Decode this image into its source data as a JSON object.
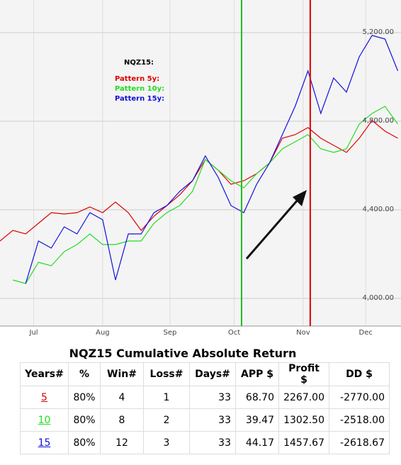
{
  "chart_data": {
    "type": "line",
    "legend_title": "NQZ15:",
    "x": [
      0,
      4,
      8,
      12,
      16,
      20,
      24,
      28,
      32,
      36,
      40,
      44,
      48,
      52,
      56,
      60,
      64,
      68,
      72,
      76,
      80,
      84,
      88,
      92,
      96,
      100,
      104,
      108,
      112,
      116,
      120,
      124
    ],
    "xlim": [
      0,
      125
    ],
    "xticks": [
      {
        "value": 10.5,
        "label": "Jul"
      },
      {
        "value": 32,
        "label": "Aug"
      },
      {
        "value": 53,
        "label": "Sep"
      },
      {
        "value": 73,
        "label": "Oct"
      },
      {
        "value": 94.5,
        "label": "Nov"
      },
      {
        "value": 114,
        "label": "Dec"
      }
    ],
    "ylim": [
      3875,
      5347
    ],
    "yticks": [
      {
        "value": 4000,
        "label": "4,000.00"
      },
      {
        "value": 4400,
        "label": "4,400.00"
      },
      {
        "value": 4800,
        "label": "4,800.00"
      },
      {
        "value": 5200,
        "label": "5,200.00"
      }
    ],
    "grid": true,
    "series": [
      {
        "name": "Pattern 5y:",
        "color": "#e00000",
        "values": [
          4259,
          4307,
          4291,
          4339,
          4387,
          4381,
          4387,
          4413,
          4387,
          4435,
          4387,
          4307,
          4371,
          4419,
          4467,
          4531,
          4627,
          4579,
          4515,
          4531,
          4563,
          4611,
          4723,
          4739,
          4771,
          4723,
          4691,
          4659,
          4723,
          4803,
          4755,
          4723
        ]
      },
      {
        "name": "Pattern 10y:",
        "color": "#22dd22",
        "values": [
          null,
          4083,
          4067,
          4163,
          4147,
          4211,
          4243,
          4291,
          4243,
          4243,
          4259,
          4259,
          4339,
          4387,
          4419,
          4483,
          4627,
          4579,
          4531,
          4499,
          4563,
          4611,
          4675,
          4707,
          4739,
          4675,
          4659,
          4675,
          4787,
          4835,
          4867,
          4787
        ]
      },
      {
        "name": "Pattern 15y:",
        "color": "#1010dd",
        "values": [
          null,
          null,
          4067,
          4259,
          4227,
          4323,
          4291,
          4387,
          4355,
          4083,
          4291,
          4291,
          4387,
          4419,
          4483,
          4531,
          4643,
          4547,
          4419,
          4387,
          4515,
          4611,
          4739,
          4867,
          5027,
          4835,
          4995,
          4931,
          5091,
          5187,
          5171,
          5027
        ]
      }
    ],
    "markers": [
      {
        "x": 75.3,
        "color": "#22bb22"
      },
      {
        "x": 96.7,
        "color": "#dd0000"
      }
    ]
  },
  "table": {
    "title": "NQZ15 Cumulative Absolute Return",
    "header": [
      "Years#",
      "%",
      "Win#",
      "Loss#",
      "Days#",
      "APP $",
      "Profit $",
      "DD $"
    ],
    "rows": [
      [
        "5",
        "80%",
        "4",
        "1",
        "33",
        "68.70",
        "2267.00",
        "-2770.00"
      ],
      [
        "10",
        "80%",
        "8",
        "2",
        "33",
        "39.47",
        "1302.50",
        "-2518.00"
      ],
      [
        "15",
        "80%",
        "12",
        "3",
        "33",
        "44.17",
        "1457.67",
        "-2618.67"
      ]
    ]
  }
}
